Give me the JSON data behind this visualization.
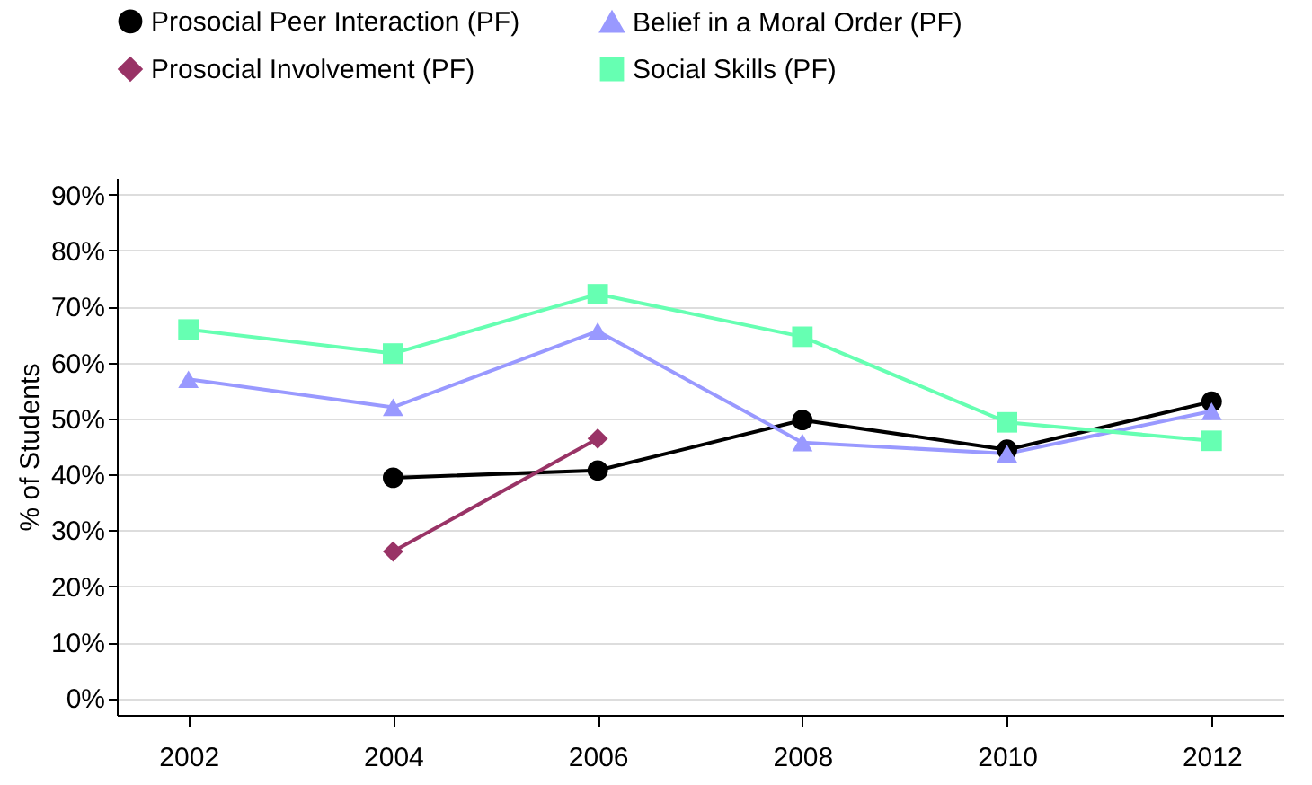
{
  "chart_data": {
    "type": "line",
    "ylabel": "% of Students",
    "x": [
      2002,
      2004,
      2006,
      2008,
      2010,
      2012
    ],
    "series": [
      {
        "name": "Prosocial Peer Interaction (PF)",
        "color": "#000000",
        "marker": "circle",
        "values": [
          null,
          39.4,
          40.7,
          49.7,
          44.4,
          53
        ]
      },
      {
        "name": "Prosocial Involvement (PF)",
        "color": "#993366",
        "marker": "diamond",
        "values": [
          null,
          26.2,
          46.4,
          null,
          null,
          null
        ]
      },
      {
        "name": "Belief in a Moral Order (PF)",
        "color": "#9999ff",
        "marker": "triangle",
        "values": [
          57,
          52,
          65.6,
          45.7,
          43.7,
          51.3
        ]
      },
      {
        "name": "Social Skills (PF)",
        "color": "#66ffb2",
        "marker": "square",
        "values": [
          65.9,
          61.6,
          72.2,
          64.6,
          49.3,
          46
        ]
      }
    ],
    "xlim": [
      2001.3,
      2012.7
    ],
    "xticks": [
      2002,
      2004,
      2006,
      2008,
      2010,
      2012
    ],
    "ylim": [
      -3,
      93
    ],
    "yticks": [
      {
        "value": 0,
        "label": "0%"
      },
      {
        "value": 10,
        "label": "10%"
      },
      {
        "value": 20,
        "label": "20%"
      },
      {
        "value": 30,
        "label": "30%"
      },
      {
        "value": 40,
        "label": "40%"
      },
      {
        "value": 50,
        "label": "50%"
      },
      {
        "value": 60,
        "label": "60%"
      },
      {
        "value": 70,
        "label": "70%"
      },
      {
        "value": 80,
        "label": "80%"
      },
      {
        "value": 90,
        "label": "90%"
      }
    ],
    "grid": "y",
    "legend": "top left"
  }
}
